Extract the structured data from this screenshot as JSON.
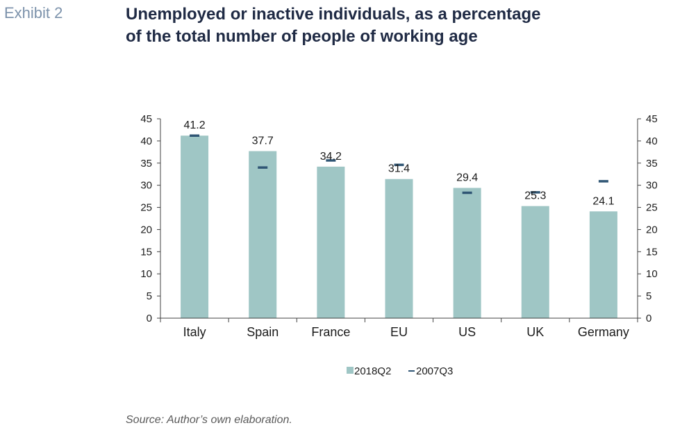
{
  "exhibit_label": "Exhibit 2",
  "title_line1": "Unemployed or inactive individuals, as a percentage",
  "title_line2": "of the total number of people of working age",
  "source": "Source: Author’s own elaboration.",
  "colors": {
    "bar": "#9fc6c5",
    "marker": "#2f5574",
    "axis": "#404040",
    "text": "#1a1a1a"
  },
  "chart_data": {
    "type": "bar",
    "categories": [
      "Italy",
      "Spain",
      "France",
      "EU",
      "US",
      "UK",
      "Germany"
    ],
    "series": [
      {
        "name": "2018Q2",
        "kind": "bar",
        "values": [
          41.2,
          37.7,
          34.2,
          31.4,
          29.4,
          25.3,
          24.1
        ]
      },
      {
        "name": "2007Q3",
        "kind": "marker",
        "values": [
          41.2,
          34.0,
          35.6,
          34.6,
          28.3,
          28.4,
          30.9
        ]
      }
    ],
    "data_labels": [
      "41.2",
      "37.7",
      "34.2",
      "31.4",
      "29.4",
      "25.3",
      "24.1"
    ],
    "ylim": [
      0,
      45
    ],
    "y_ticks": [
      0,
      5,
      10,
      15,
      20,
      25,
      30,
      35,
      40,
      45
    ],
    "secondary_axis": true,
    "grid": false,
    "legend_position": "bottom"
  }
}
